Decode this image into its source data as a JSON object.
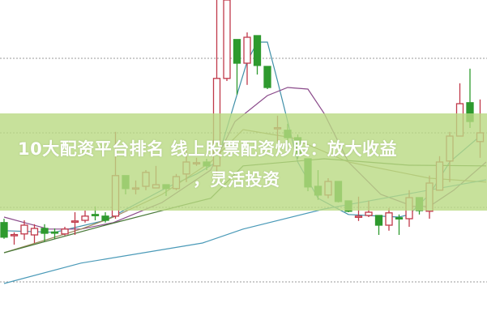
{
  "banner": {
    "line1": "10大配资平台排名 线上股票配资炒股：放大收益",
    "line2": "，灵活投资"
  },
  "chart_data": {
    "type": "candlestick",
    "title": "",
    "xlabel": "",
    "ylabel": "",
    "ylim": [
      0,
      100
    ],
    "grid": "horizontal-dotted",
    "colors": {
      "up": "#c0394a",
      "down": "#2e9a2e",
      "grid": "#9a9a9a",
      "banner": "#b9da82"
    },
    "candles_ohlc": [
      [
        31.3,
        32.5,
        26.3,
        26.8
      ],
      [
        27.5,
        28.3,
        24.5,
        27.6
      ],
      [
        27.8,
        32,
        26,
        30.5
      ],
      [
        27.5,
        30.8,
        25,
        29.5
      ],
      [
        29.5,
        30.8,
        25.5,
        28
      ],
      [
        28.4,
        29.5,
        26.3,
        28.2
      ],
      [
        27.8,
        30,
        27.3,
        29.3
      ],
      [
        31.7,
        34.5,
        27.5,
        31.8
      ],
      [
        32,
        35,
        31.3,
        33.3
      ],
      [
        33.8,
        36.3,
        32,
        33.6
      ],
      [
        33.3,
        34.5,
        31.3,
        32
      ],
      [
        33.3,
        59.3,
        32.5,
        45.8
      ],
      [
        45.8,
        45.8,
        40,
        41.8
      ],
      [
        41.9,
        44.3,
        40,
        42
      ],
      [
        42.5,
        47.5,
        41.3,
        46.8
      ],
      [
        42,
        48.8,
        42,
        43
      ],
      [
        43,
        43,
        39.5,
        41.8
      ],
      [
        41.8,
        46.3,
        41.3,
        45.5
      ],
      [
        46.3,
        53.8,
        43.8,
        50
      ],
      [
        49.7,
        51.3,
        48.8,
        49.8
      ],
      [
        50,
        51,
        47.5,
        48.8
      ],
      [
        48.8,
        100,
        45,
        75.8
      ],
      [
        75.8,
        100,
        75,
        100
      ],
      [
        87.8,
        87.8,
        70.8,
        80.5
      ],
      [
        80.5,
        90,
        73.8,
        88.5
      ],
      [
        89,
        89,
        77,
        79.8
      ],
      [
        79.5,
        79.5,
        72.5,
        73
      ],
      [
        60.4,
        64.3,
        56.3,
        60.6
      ],
      [
        59.8,
        61.8,
        55.5,
        57.5
      ],
      [
        57.5,
        58.5,
        51,
        52.5
      ],
      [
        51,
        51,
        41,
        42.3
      ],
      [
        42.5,
        47.5,
        38.3,
        39.8
      ],
      [
        39.8,
        45,
        38.8,
        44
      ],
      [
        44,
        44,
        37.5,
        37.8
      ],
      [
        38,
        38,
        34.5,
        34.8
      ],
      [
        33.2,
        39.3,
        31.8,
        33.3
      ],
      [
        33.5,
        38,
        33,
        34.5
      ],
      [
        33.5,
        33.5,
        27.5,
        30.5
      ],
      [
        30.5,
        35.8,
        28.8,
        34.3
      ],
      [
        32.8,
        33.8,
        27.5,
        32.7
      ],
      [
        32.5,
        41.3,
        30,
        39
      ],
      [
        39,
        39,
        33.8,
        35
      ],
      [
        34.8,
        45.8,
        32.5,
        43.5
      ],
      [
        41.3,
        51.8,
        41.3,
        50
      ],
      [
        50.3,
        59.3,
        43.8,
        58
      ],
      [
        58,
        74.3,
        58,
        68
      ],
      [
        68.3,
        78.8,
        60.5,
        62.5
      ],
      [
        56.3,
        69.3,
        51.3,
        59
      ]
    ],
    "moving_averages": [
      {
        "color": "#3f8fa8",
        "points": [
          [
            0,
            28.8
          ],
          [
            5,
            28.3
          ],
          [
            10,
            32
          ],
          [
            16,
            42
          ],
          [
            19,
            46.3
          ],
          [
            21,
            50
          ],
          [
            23,
            70.8
          ],
          [
            24,
            81
          ],
          [
            25,
            87
          ],
          [
            26,
            87
          ],
          [
            27,
            75
          ],
          [
            28,
            62.5
          ],
          [
            29,
            50
          ],
          [
            31,
            38.8
          ],
          [
            34,
            33.8
          ],
          [
            39,
            33
          ],
          [
            40,
            33.8
          ],
          [
            42,
            40
          ],
          [
            44,
            50
          ],
          [
            47,
            58
          ]
        ]
      },
      {
        "color": "#8a4a8a",
        "points": [
          [
            0,
            33
          ],
          [
            2,
            31.3
          ],
          [
            4.4,
            29.3
          ],
          [
            7.6,
            29.3
          ],
          [
            10.8,
            31.3
          ],
          [
            15.6,
            37.5
          ],
          [
            20.4,
            47.5
          ],
          [
            22.8,
            62.5
          ],
          [
            26,
            70.5
          ],
          [
            28,
            73
          ],
          [
            30,
            72.5
          ],
          [
            31.6,
            65
          ],
          [
            34,
            50
          ],
          [
            37.2,
            40
          ],
          [
            40.4,
            36.3
          ],
          [
            42,
            36.3
          ],
          [
            44.4,
            41.3
          ],
          [
            47.6,
            50
          ]
        ]
      },
      {
        "color": "#9a8a5a",
        "points": [
          [
            0,
            22
          ],
          [
            7.6,
            29.3
          ],
          [
            10.8,
            33
          ],
          [
            15.6,
            40
          ],
          [
            20.4,
            50
          ],
          [
            23.6,
            60
          ],
          [
            28.4,
            57.5
          ],
          [
            34,
            50
          ],
          [
            42,
            45
          ],
          [
            47.6,
            43.8
          ]
        ]
      },
      {
        "color": "#4a7a3a",
        "points": [
          [
            0,
            22
          ],
          [
            10,
            30.5
          ],
          [
            17.2,
            36.3
          ],
          [
            20.4,
            38.8
          ],
          [
            23.6,
            48.8
          ],
          [
            31.6,
            51
          ],
          [
            40,
            49
          ],
          [
            47.6,
            48.8
          ]
        ]
      },
      {
        "color": "#4a9ab8",
        "points": [
          [
            0,
            12.5
          ],
          [
            7.6,
            18.8
          ],
          [
            19.6,
            25
          ],
          [
            23.6,
            29.3
          ],
          [
            31.6,
            35.5
          ],
          [
            47.6,
            44.5
          ]
        ]
      }
    ],
    "gridlines": [
      82,
      59,
      36,
      13
    ]
  }
}
